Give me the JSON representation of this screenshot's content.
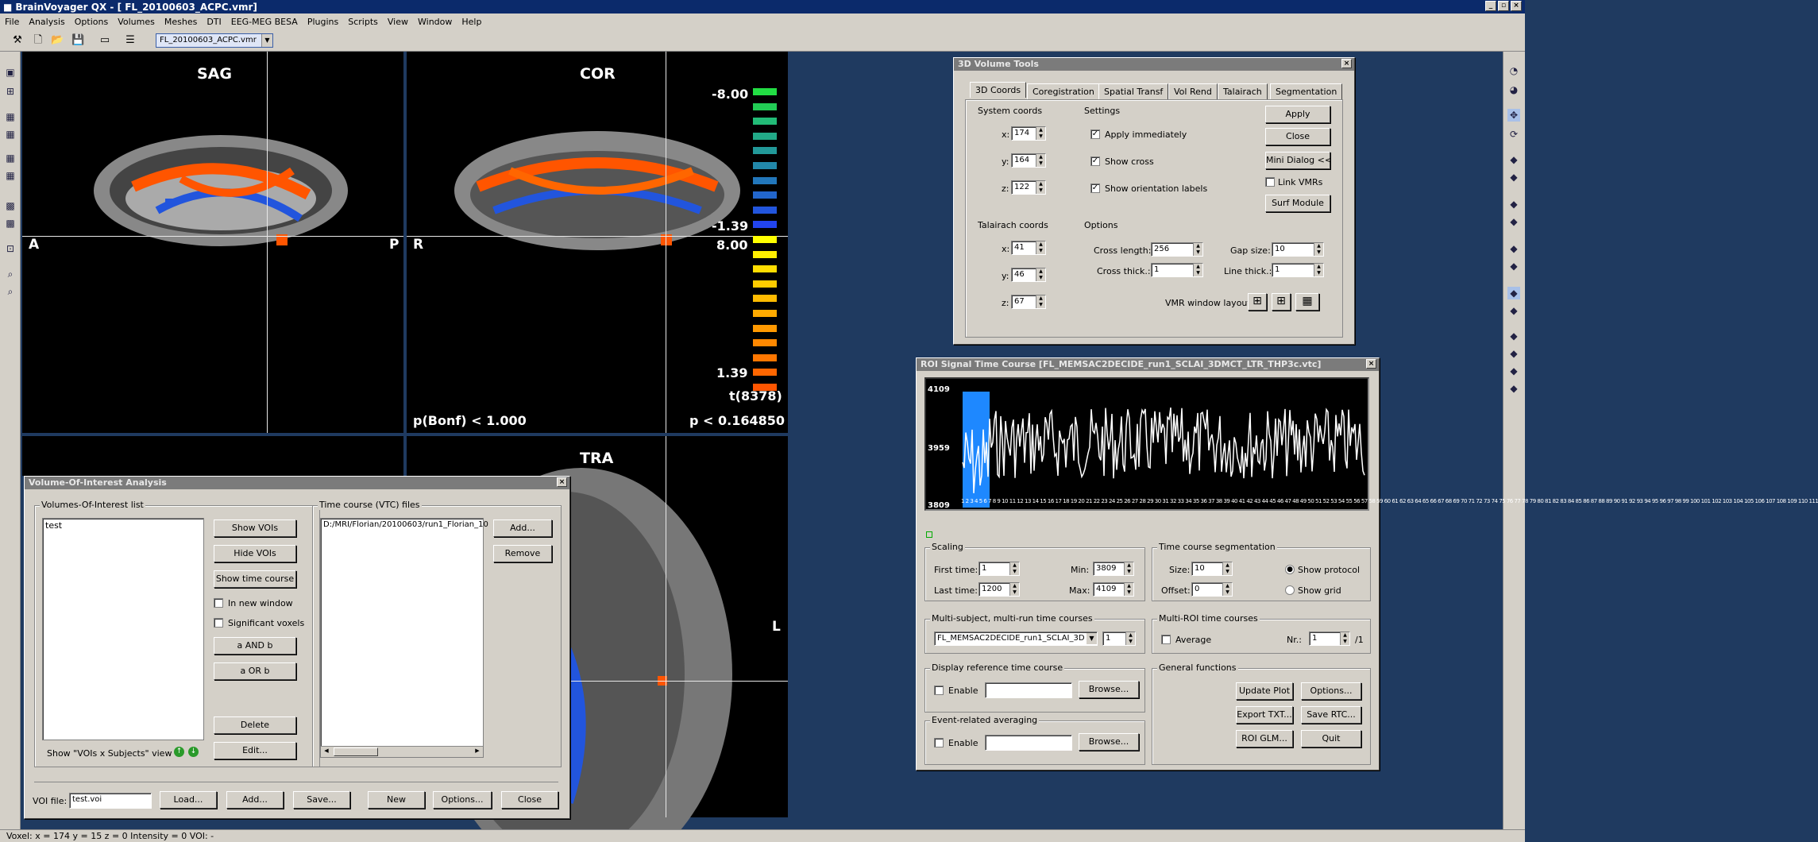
{
  "app": {
    "title": "BrainVoyager QX - [ FL_20100603_ACPC.vmr]",
    "document": "FL_20100603_ACPC.vmr"
  },
  "menu": [
    "File",
    "Analysis",
    "Options",
    "Volumes",
    "Meshes",
    "DTI",
    "EEG-MEG BESA",
    "Plugins",
    "Scripts",
    "View",
    "Window",
    "Help"
  ],
  "views": {
    "sag": {
      "label": "SAG",
      "left": "A",
      "right": "P"
    },
    "cor": {
      "label": "COR",
      "left": "R"
    },
    "tra": {
      "label": "TRA",
      "right": "L"
    }
  },
  "colorbar": {
    "neg_max": "-8.00",
    "neg_min": "-1.39",
    "pos_max": "8.00",
    "pos_min": "1.39",
    "stat": "t(8378)",
    "bonf": "p(Bonf) < 1.000",
    "p": "p < 0.164850",
    "neg_colors": [
      "#22dd44",
      "#22cc55",
      "#22bb77",
      "#22aa88",
      "#229999",
      "#2288aa",
      "#2277bb",
      "#2266cc",
      "#2255dd",
      "#2244ee"
    ],
    "pos_colors": [
      "#ffff00",
      "#ffee00",
      "#ffdd00",
      "#ffcc00",
      "#ffbb00",
      "#ffaa00",
      "#ff9900",
      "#ff8800",
      "#ff7700",
      "#ff6600",
      "#ff5500"
    ]
  },
  "vol_tools": {
    "title": "3D Volume Tools",
    "tabs": [
      "3D Coords",
      "Coregistration",
      "Spatial Transf",
      "Vol Rend",
      "Talairach",
      "Segmentation"
    ],
    "system_coords": "System coords",
    "settings": "Settings",
    "x": "174",
    "y": "164",
    "z": "122",
    "apply_immediately": "Apply immediately",
    "show_cross": "Show cross",
    "show_orientation": "Show orientation labels",
    "apply": "Apply",
    "close": "Close",
    "mini_dialog": "Mini Dialog <<",
    "link_vmrs": "Link VMRs",
    "surf_module": "Surf Module",
    "talairach_coords": "Talairach coords",
    "options": "Options",
    "tx": "41",
    "ty": "46",
    "tz": "67",
    "cross_length": "Cross length:",
    "cross_length_val": "256",
    "gap_size": "Gap size:",
    "gap_size_val": "10",
    "cross_thick": "Cross thick.:",
    "cross_thick_val": "1",
    "line_thick": "Line thick.:",
    "line_thick_val": "1",
    "vmr_layout": "VMR window layout:",
    "x_lbl": "x:",
    "y_lbl": "y:",
    "z_lbl": "z:"
  },
  "roi": {
    "title": "ROI Signal Time Course  [FL_MEMSAC2DECIDE_run1_SCLAI_3DMCT_LTR_THP3c.vtc]",
    "ymax": "4109",
    "ymid": "3959",
    "ymin": "3809",
    "xticks": "1 2 3 4 5 6 7 8 9 10 11 12 13 14 15 16 17 18 19 20 21 22 23 24 25 26 27 28 29 30 31 32 33 34 35 36 37 38 39 40 41 42 43 44 45 46 47 48 49 50 51 52 53 54 55 56 57 58 59 60 61 62 63 64 65 66 67 68 69 70 71 72 73 74 75 76 77 78 79 80 81 82 83 84 85 86 87 88 89 90 91 92 93 94 95 96 97 98 99 100 101 102 103 104 105 106 107 108 109 110 111",
    "scaling": "Scaling",
    "first_time": "First time:",
    "first_time_val": "1",
    "last_time": "Last time:",
    "last_time_val": "1200",
    "min": "Min:",
    "min_val": "3809",
    "max": "Max:",
    "max_val": "4109",
    "segmentation": "Time course segmentation",
    "size": "Size:",
    "size_val": "10",
    "offset": "Offset:",
    "offset_val": "0",
    "show_protocol": "Show protocol",
    "show_grid": "Show grid",
    "multi_subject": "Multi-subject, multi-run time courses",
    "ms_value": "FL_MEMSAC2DECIDE_run1_SCLAI_3D",
    "ms_num": "1",
    "multi_roi": "Multi-ROI time courses",
    "average": "Average",
    "nr": "Nr.:",
    "nr_val": "1",
    "nr_total": "/1",
    "display_ref": "Display reference time course",
    "enable": "Enable",
    "browse": "Browse...",
    "general": "General functions",
    "update_plot": "Update Plot",
    "options": "Options...",
    "export_txt": "Export TXT...",
    "save_rtc": "Save RTC...",
    "roi_glm": "ROI GLM...",
    "quit": "Quit",
    "event_avg": "Event-related averaging"
  },
  "voi": {
    "title": "Volume-Of-Interest Analysis",
    "list_label": "Volumes-Of-Interest list",
    "items": [
      "test"
    ],
    "show_vois": "Show VOIs",
    "hide_vois": "Hide VOIs",
    "show_tc": "Show time course",
    "in_new_window": "In new window",
    "significant_voxels": "Significant voxels",
    "a_and_b": "a AND b",
    "a_or_b": "a OR b",
    "delete": "Delete",
    "edit": "Edit...",
    "vxs_view": "Show \"VOIs x Subjects\" view",
    "vtc_label": "Time course (VTC) files",
    "vtc_items": [
      "D:/MRI/Florian/20100603/run1_Florian_10"
    ],
    "add": "Add...",
    "remove": "Remove",
    "voi_file": "VOI file:",
    "voi_file_val": "test.voi",
    "load": "Load...",
    "add2": "Add...",
    "save": "Save...",
    "new": "New",
    "options": "Options...",
    "close": "Close"
  },
  "status": "Voxel:  x = 174  y = 15  z = 0   Intensity = 0   VOI: -"
}
